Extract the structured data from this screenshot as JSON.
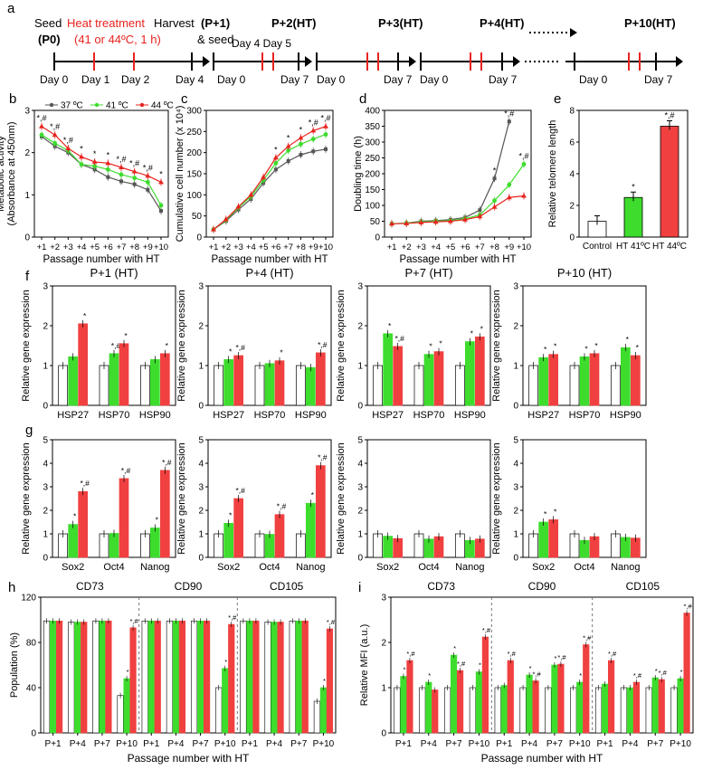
{
  "colors": {
    "ctrl": "#ffffff",
    "g41": "#3ddc2d",
    "g44": "#f04040",
    "red": "#e8231f",
    "black": "#000000",
    "grey37": "#555555"
  },
  "panel_a": {
    "label": "a",
    "seed_text": "Seed",
    "heat_text": "Heat treatment",
    "harvest_text": "Harvest",
    "p0": "(P0)",
    "heat_cond": "(41 or 44ºC, 1 h)",
    "and_seed": "& seed",
    "passages": [
      "(P+1)",
      "P+2(HT)",
      "P+3(HT)",
      "P+4(HT)",
      "P+10(HT)"
    ],
    "day_labels": [
      "Day 0",
      "Day 1",
      "Day 2",
      "Day 4",
      "Day 0",
      "Day 4 Day 5",
      "Day 7",
      "Day 0",
      "Day 7",
      "Day 0",
      "Day 7",
      "Day 0",
      "Day 7"
    ]
  },
  "chart_data": [
    {
      "id": "b",
      "type": "line",
      "ylabel": "Metabolic activity",
      "ylabel2": "(Absorbance at 450nm)",
      "xlabel": "Passage number with HT",
      "categories": [
        "+1",
        "+2",
        "+3",
        "+4",
        "+5",
        "+6",
        "+7",
        "+8",
        "+9",
        "+10"
      ],
      "ylim": [
        0,
        3
      ],
      "yticks": [
        "0",
        "1",
        "2",
        "3"
      ],
      "legend": [
        "37 ºC",
        "41 ºC",
        "44 ºC"
      ],
      "series": [
        {
          "name": "37 ºC",
          "values": [
            2.38,
            2.15,
            2.0,
            1.72,
            1.6,
            1.42,
            1.32,
            1.25,
            1.12,
            0.62
          ]
        },
        {
          "name": "41 ºC",
          "values": [
            2.42,
            2.22,
            2.05,
            1.72,
            1.68,
            1.6,
            1.48,
            1.4,
            1.3,
            0.75
          ]
        },
        {
          "name": "44 ºC",
          "values": [
            2.62,
            2.42,
            2.1,
            1.9,
            1.78,
            1.75,
            1.65,
            1.55,
            1.45,
            1.3
          ]
        }
      ],
      "annotations": [
        "*,#",
        "*,#",
        "*,#",
        "*",
        "*",
        "*",
        "*,#",
        "*,#",
        "*,#",
        "*"
      ]
    },
    {
      "id": "c",
      "type": "line",
      "ylabel": "Cumulative cell number (x 10⁴)",
      "xlabel": "Passage number with HT",
      "categories": [
        "+1",
        "+2",
        "+3",
        "+4",
        "+5",
        "+6",
        "+7",
        "+8",
        "+9",
        "+10"
      ],
      "ylim": [
        0,
        300
      ],
      "yticks": [
        "0",
        "50",
        "100",
        "150",
        "200",
        "250",
        "300"
      ],
      "series": [
        {
          "name": "37 ºC",
          "values": [
            18,
            38,
            65,
            90,
            128,
            160,
            180,
            195,
            203,
            208
          ]
        },
        {
          "name": "41 ºC",
          "values": [
            18,
            40,
            70,
            96,
            135,
            175,
            205,
            220,
            232,
            243
          ]
        },
        {
          "name": "44 ºC",
          "values": [
            18,
            42,
            72,
            100,
            142,
            188,
            215,
            235,
            252,
            262
          ]
        }
      ],
      "annotations": [
        "",
        "",
        "",
        "",
        "",
        "*",
        "*",
        "*",
        "*,#",
        "*,#"
      ]
    },
    {
      "id": "d",
      "type": "line",
      "ylabel": "Doubling time (h)",
      "xlabel": "Passage number with HT",
      "categories": [
        "+1",
        "+2",
        "+3",
        "+4",
        "+5",
        "+6",
        "+7",
        "+8",
        "+9",
        "+10"
      ],
      "ylim": [
        0,
        400
      ],
      "yticks": [
        "0",
        "50",
        "100",
        "150",
        "200",
        "250",
        "300",
        "350",
        "400"
      ],
      "series": [
        {
          "name": "37 ºC",
          "values": [
            42,
            44,
            50,
            52,
            55,
            62,
            85,
            185,
            365,
            null
          ]
        },
        {
          "name": "41 ºC",
          "values": [
            42,
            44,
            48,
            50,
            52,
            58,
            70,
            115,
            165,
            230
          ]
        },
        {
          "name": "44 ºC",
          "values": [
            42,
            43,
            46,
            48,
            50,
            55,
            65,
            95,
            125,
            130
          ]
        }
      ],
      "annotations": [
        "",
        "",
        "",
        "",
        "",
        "",
        "",
        "*",
        "*,#",
        "*,#"
      ]
    },
    {
      "id": "e",
      "type": "bar",
      "ylabel": "Relative telomere length",
      "categories": [
        "Control",
        "HT 41ºC",
        "HT 44ºC"
      ],
      "values": [
        1.0,
        2.5,
        7.0
      ],
      "ylim": [
        0,
        8
      ],
      "yticks": [
        "0",
        "2",
        "4",
        "6",
        "8"
      ],
      "annotations": [
        "",
        "*",
        "*,#"
      ]
    },
    {
      "id": "f1",
      "type": "bar",
      "title": "P+1 (HT)",
      "ylabel": "Relative gene expression",
      "categories": [
        "HSP27",
        "HSP70",
        "HSP90"
      ],
      "ylim": [
        0,
        3
      ],
      "yticks": [
        "0",
        "1",
        "2",
        "3"
      ],
      "series": [
        {
          "name": "Control",
          "values": [
            1,
            1,
            1
          ]
        },
        {
          "name": "HT 41ºC",
          "values": [
            1.22,
            1.3,
            1.15
          ]
        },
        {
          "name": "HT 44ºC",
          "values": [
            2.05,
            1.55,
            1.3
          ]
        }
      ],
      "annotations": [
        "",
        "*",
        "*,#",
        "*",
        "",
        "*",
        ""
      ]
    },
    {
      "id": "f2",
      "type": "bar",
      "title": "P+4 (HT)",
      "ylabel": "Relative gene expression",
      "categories": [
        "HSP27",
        "HSP70",
        "HSP90"
      ],
      "ylim": [
        0,
        3
      ],
      "yticks": [
        "0",
        "1",
        "2",
        "3"
      ],
      "series": [
        {
          "name": "Control",
          "values": [
            1,
            1,
            1
          ]
        },
        {
          "name": "HT 41ºC",
          "values": [
            1.15,
            1.05,
            0.95
          ]
        },
        {
          "name": "HT 44ºC",
          "values": [
            1.25,
            1.12,
            1.32
          ]
        }
      ],
      "annotations": [
        "*",
        "*,#",
        "*",
        "*,#"
      ]
    },
    {
      "id": "f3",
      "type": "bar",
      "title": "P+7 (HT)",
      "ylabel": "Relative gene expression",
      "categories": [
        "HSP27",
        "HSP70",
        "HSP90"
      ],
      "ylim": [
        0,
        3
      ],
      "yticks": [
        "0",
        "1",
        "2",
        "3"
      ],
      "series": [
        {
          "name": "Control",
          "values": [
            1,
            1,
            1
          ]
        },
        {
          "name": "HT 41ºC",
          "values": [
            1.8,
            1.28,
            1.6
          ]
        },
        {
          "name": "HT 44ºC",
          "values": [
            1.48,
            1.35,
            1.72
          ]
        }
      ],
      "annotations": [
        "*",
        "*,#",
        "*",
        "*",
        "*",
        "*"
      ]
    },
    {
      "id": "f4",
      "type": "bar",
      "title": "P+10 (HT)",
      "ylabel": "Relative gene expression",
      "categories": [
        "HSP27",
        "HSP70",
        "HSP90"
      ],
      "ylim": [
        0,
        3
      ],
      "yticks": [
        "0",
        "1",
        "2",
        "3"
      ],
      "series": [
        {
          "name": "Control",
          "values": [
            1,
            1,
            1
          ]
        },
        {
          "name": "HT 41ºC",
          "values": [
            1.2,
            1.22,
            1.45
          ]
        },
        {
          "name": "HT 44ºC",
          "values": [
            1.28,
            1.3,
            1.25
          ]
        }
      ],
      "annotations": [
        "*",
        "*",
        "*",
        "*",
        "*",
        "*"
      ]
    },
    {
      "id": "g1",
      "type": "bar",
      "ylabel": "Relative gene expression",
      "categories": [
        "Sox2",
        "Oct4",
        "Nanog"
      ],
      "ylim": [
        0,
        5
      ],
      "yticks": [
        "0",
        "1",
        "2",
        "3",
        "4",
        "5"
      ],
      "series": [
        {
          "name": "Control",
          "values": [
            1,
            1,
            1
          ]
        },
        {
          "name": "HT 41ºC",
          "values": [
            1.4,
            1.02,
            1.25
          ]
        },
        {
          "name": "HT 44ºC",
          "values": [
            2.8,
            3.35,
            3.7
          ]
        }
      ],
      "annotations": [
        "*",
        "*,#",
        "*,#",
        "*",
        "*,#"
      ]
    },
    {
      "id": "g2",
      "type": "bar",
      "ylabel": "Relative gene expression",
      "categories": [
        "Sox2",
        "Oct4",
        "Nanog"
      ],
      "ylim": [
        0,
        5
      ],
      "yticks": [
        "0",
        "1",
        "2",
        "3",
        "4",
        "5"
      ],
      "series": [
        {
          "name": "Control",
          "values": [
            1,
            1,
            1
          ]
        },
        {
          "name": "HT 41ºC",
          "values": [
            1.45,
            0.98,
            2.3
          ]
        },
        {
          "name": "HT 44ºC",
          "values": [
            2.5,
            1.82,
            3.9
          ]
        }
      ],
      "annotations": [
        "*",
        "*,#",
        "*,#",
        "*",
        "*,#"
      ]
    },
    {
      "id": "g3",
      "type": "bar",
      "ylabel": "Relative gene expression",
      "categories": [
        "Sox2",
        "Oct4",
        "Nanog"
      ],
      "ylim": [
        0,
        5
      ],
      "yticks": [
        "0",
        "1",
        "2",
        "3",
        "4",
        "5"
      ],
      "series": [
        {
          "name": "Control",
          "values": [
            1,
            1,
            1
          ]
        },
        {
          "name": "HT 41ºC",
          "values": [
            0.9,
            0.78,
            0.72
          ]
        },
        {
          "name": "HT 44ºC",
          "values": [
            0.8,
            0.88,
            0.78
          ]
        }
      ],
      "annotations": []
    },
    {
      "id": "g4",
      "type": "bar",
      "ylabel": "Relative gene expression",
      "categories": [
        "Sox2",
        "Oct4",
        "Nanog"
      ],
      "ylim": [
        0,
        5
      ],
      "yticks": [
        "0",
        "1",
        "2",
        "3",
        "4",
        "5"
      ],
      "series": [
        {
          "name": "Control",
          "values": [
            1,
            1,
            1
          ]
        },
        {
          "name": "HT 41ºC",
          "values": [
            1.5,
            0.72,
            0.85
          ]
        },
        {
          "name": "HT 44ºC",
          "values": [
            1.6,
            0.88,
            0.82
          ]
        }
      ],
      "annotations": [
        "*",
        "*"
      ]
    },
    {
      "id": "h",
      "type": "bar",
      "ylabel": "Population (%)",
      "xlabel": "Passage number with HT",
      "groups": [
        "CD73",
        "CD90",
        "CD105"
      ],
      "categories": [
        "P+1",
        "P+4",
        "P+7",
        "P+10"
      ],
      "ylim": [
        0,
        120
      ],
      "yticks": [
        "0",
        "40",
        "80",
        "120"
      ],
      "series": [
        {
          "name": "Control",
          "values": [
            [
              99,
              98,
              99,
              33
            ],
            [
              99,
              99,
              99,
              40
            ],
            [
              99,
              98,
              99,
              28
            ]
          ]
        },
        {
          "name": "HT 41ºC",
          "values": [
            [
              99,
              98,
              99,
              48
            ],
            [
              99,
              99,
              99,
              57
            ],
            [
              99,
              98,
              99,
              40
            ]
          ]
        },
        {
          "name": "HT 44ºC",
          "values": [
            [
              99,
              98,
              99,
              93
            ],
            [
              99,
              99,
              99,
              96
            ],
            [
              99,
              98,
              99,
              92
            ]
          ]
        }
      ]
    },
    {
      "id": "i",
      "type": "bar",
      "ylabel": "Relative MFI (a.u.)",
      "xlabel": "Passage number with HT",
      "groups": [
        "CD73",
        "CD90",
        "CD105"
      ],
      "categories": [
        "P+1",
        "P+4",
        "P+7",
        "P+10"
      ],
      "ylim": [
        0,
        3
      ],
      "yticks": [
        "0",
        "1",
        "2",
        "3"
      ],
      "series": [
        {
          "name": "Control",
          "values": [
            [
              1,
              1,
              1,
              1
            ],
            [
              1,
              1,
              1,
              1
            ],
            [
              1,
              1,
              1,
              1
            ]
          ]
        },
        {
          "name": "HT 41ºC",
          "values": [
            [
              1.25,
              1.12,
              1.72,
              1.35
            ],
            [
              1.05,
              1.28,
              1.5,
              1.12
            ],
            [
              1.08,
              1.0,
              1.22,
              1.2
            ]
          ]
        },
        {
          "name": "HT 44ºC",
          "values": [
            [
              1.6,
              0.95,
              1.38,
              2.12
            ],
            [
              1.6,
              1.15,
              1.52,
              1.95
            ],
            [
              1.6,
              1.12,
              1.18,
              2.65
            ]
          ]
        }
      ]
    }
  ],
  "panel_labels": [
    "a",
    "b",
    "c",
    "d",
    "e",
    "f",
    "g",
    "h",
    "i"
  ]
}
